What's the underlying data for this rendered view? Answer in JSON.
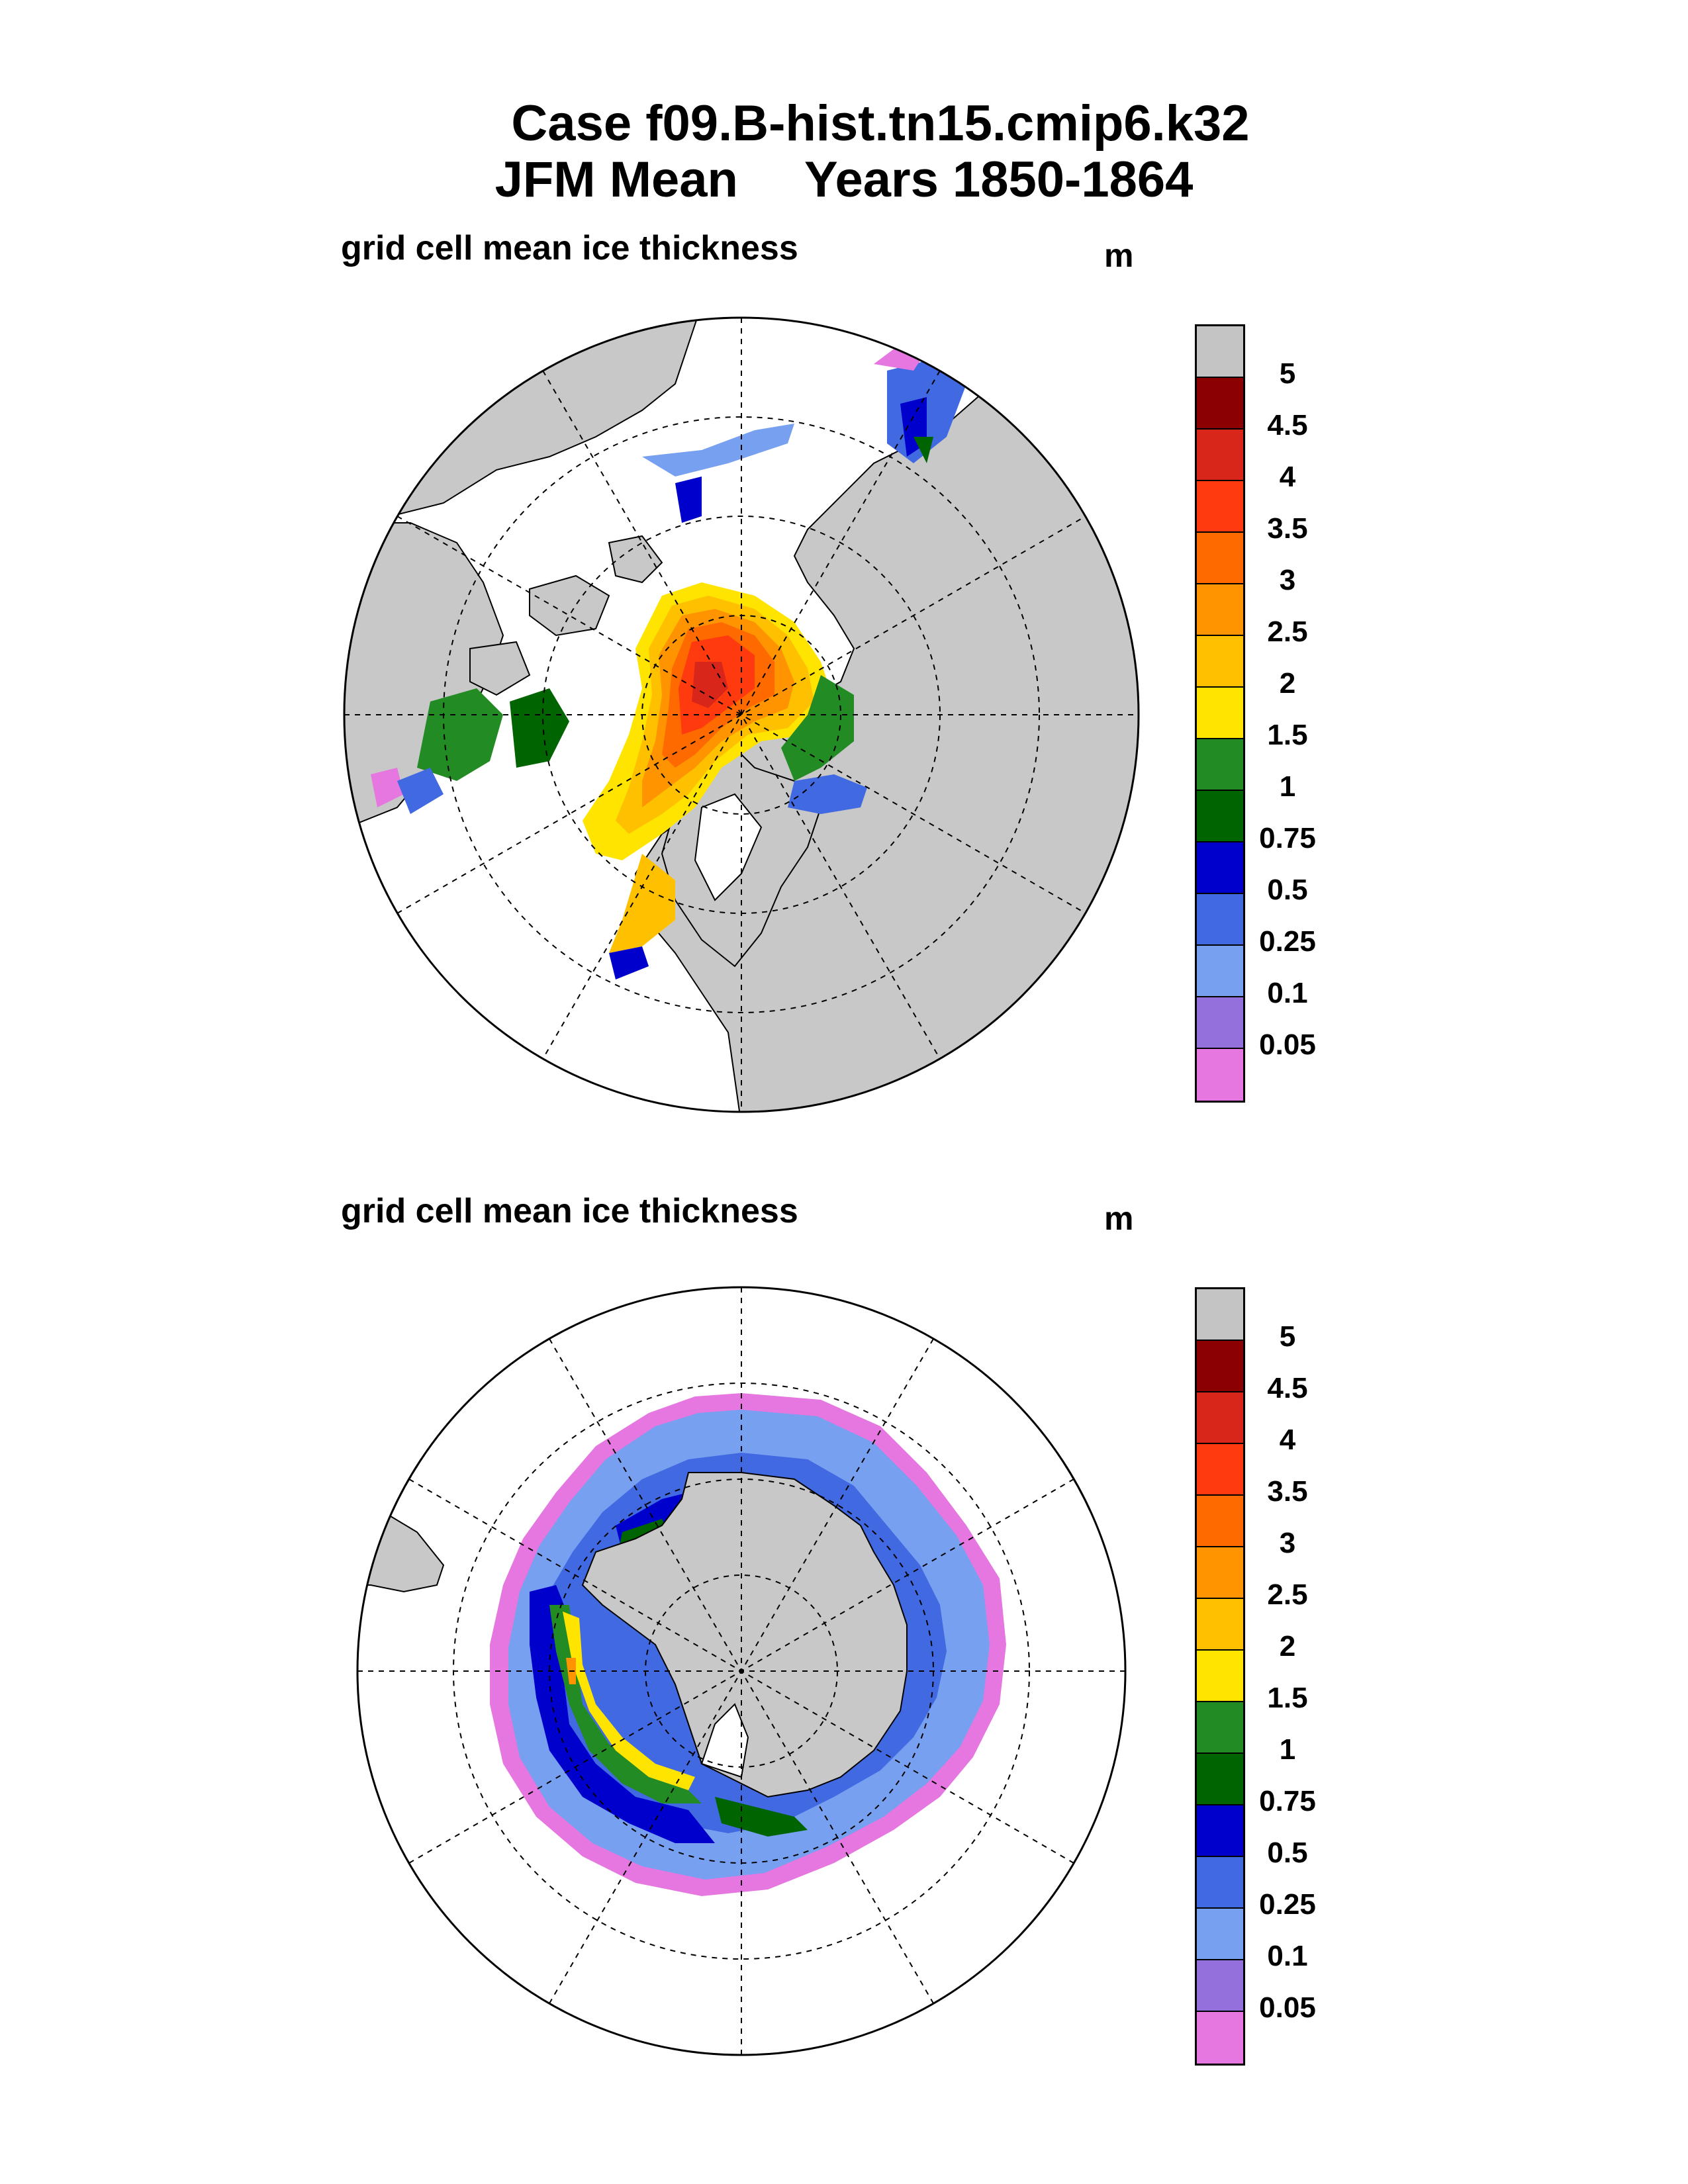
{
  "figure": {
    "title_line1": "Case f09.B-hist.tn15.cmip6.k32",
    "season": "JFM Mean",
    "years": "Years 1850-1864"
  },
  "panels": [
    {
      "hemisphere": "Northern",
      "title": "grid cell mean ice thickness",
      "units": "m"
    },
    {
      "hemisphere": "Southern",
      "title": "grid cell mean ice thickness",
      "units": "m"
    }
  ],
  "colorbar": {
    "labels": [
      "5",
      "4.5",
      "4",
      "3.5",
      "3",
      "2.5",
      "2",
      "1.5",
      "1",
      "0.75",
      "0.5",
      "0.25",
      "0.1",
      "0.05"
    ],
    "colors": [
      "#c4c4c4",
      "#8b0000",
      "#d8271a",
      "#ff3a0e",
      "#ff6a00",
      "#ff9400",
      "#ffc000",
      "#ffe400",
      "#238b23",
      "#006400",
      "#0000cd",
      "#4169e1",
      "#78a0f0",
      "#9370db",
      "#e676e0"
    ]
  },
  "map_colors": {
    "land": "#c8c8c8",
    "ocean": "#ffffff",
    "grid": "#000000"
  }
}
